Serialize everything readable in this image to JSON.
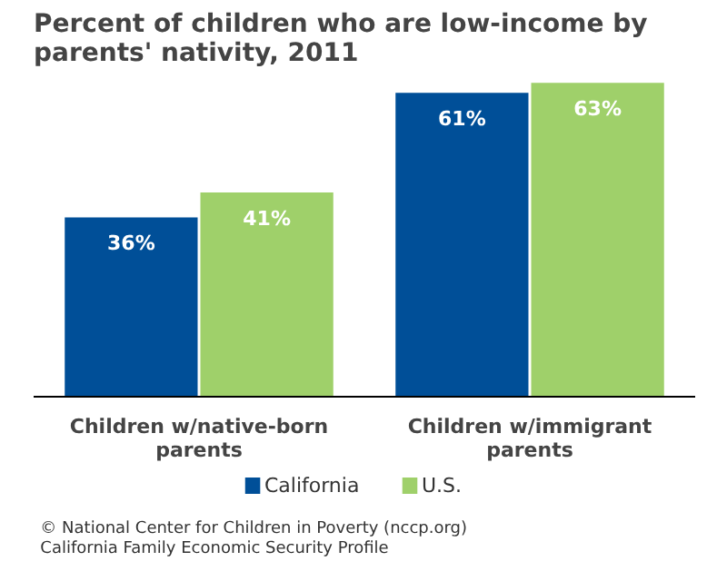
{
  "chart_data": {
    "type": "bar",
    "title": "Percent of children who are low-income by parents' nativity, 2011",
    "categories": [
      "Children w/native-born parents",
      "Children w/immigrant parents"
    ],
    "series": [
      {
        "name": "California",
        "color": "#004f98",
        "values": [
          36,
          61
        ],
        "value_labels": [
          "36%",
          "61%"
        ]
      },
      {
        "name": "U.S.",
        "color": "#9fd06a",
        "values": [
          41,
          63
        ],
        "value_labels": [
          "41%",
          "63%"
        ]
      }
    ],
    "legend": "bottom",
    "annotations": [
      "© National Center for Children in Poverty (nccp.org)",
      "California Family Economic Security Profile"
    ]
  }
}
